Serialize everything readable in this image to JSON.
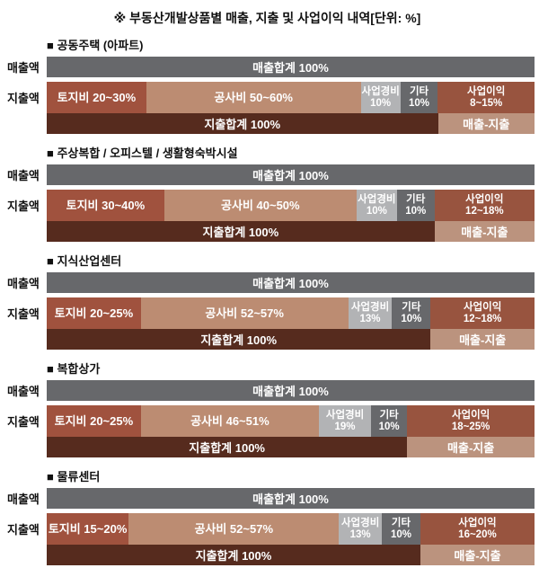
{
  "title": "※ 부동산개발상품별 매출, 지출 및 사업이익 내역[단위: %]",
  "labels": {
    "revenue_row": "매출액",
    "expense_row": "지출액"
  },
  "colors": {
    "revenue_total": "#67686b",
    "land": "#a0523e",
    "construction": "#bc8c72",
    "overhead": "#b2b3b5",
    "other": "#67686b",
    "profit": "#98543f",
    "expense_total": "#562b1e",
    "margin": "#bb937e",
    "text_on_bar": "#ffffff",
    "heading_text": "#111111"
  },
  "chart_data": {
    "type": "bar",
    "orientation": "horizontal-stacked",
    "unit": "%",
    "title": "※ 부동산개발상품별 매출, 지출 및 사업이익 내역[단위: %]",
    "legend": "none",
    "sections": [
      {
        "heading": "■ 공동주택 (아파트)",
        "revenue_total": "매출합계 100%",
        "expense_total": "지출합계 100%",
        "margin": "매출-지출",
        "segments": [
          {
            "name": "토지비",
            "line1": "토지비 20~30%",
            "line2": "",
            "value": "20~30%",
            "width_pct": 20.4,
            "color": "land"
          },
          {
            "name": "공사비",
            "line1": "공사비 50~60%",
            "line2": "",
            "value": "50~60%",
            "width_pct": 44.0,
            "color": "construction"
          },
          {
            "name": "사업경비",
            "line1": "사업경비",
            "line2": "10%",
            "value": "10%",
            "width_pct": 8.1,
            "color": "overhead"
          },
          {
            "name": "기타",
            "line1": "기타",
            "line2": "10%",
            "value": "10%",
            "width_pct": 7.7,
            "color": "other"
          },
          {
            "name": "사업이익",
            "line1": "사업이익",
            "line2": "8~15%",
            "value": "8~15%",
            "width_pct": 19.8,
            "color": "profit"
          }
        ]
      },
      {
        "heading": "■ 주상복합 / 오피스텔 / 생활형숙박시설",
        "revenue_total": "매출합계 100%",
        "expense_total": "지출합계 100%",
        "margin": "매출-지출",
        "segments": [
          {
            "name": "토지비",
            "line1": "토지비 30~40%",
            "line2": "",
            "value": "30~40%",
            "width_pct": 24.1,
            "color": "land"
          },
          {
            "name": "공사비",
            "line1": "공사비 40~50%",
            "line2": "",
            "value": "40~50%",
            "width_pct": 39.4,
            "color": "construction"
          },
          {
            "name": "사업경비",
            "line1": "사업경비",
            "line2": "10%",
            "value": "10%",
            "width_pct": 8.3,
            "color": "overhead"
          },
          {
            "name": "기타",
            "line1": "기타",
            "line2": "10%",
            "value": "10%",
            "width_pct": 7.7,
            "color": "other"
          },
          {
            "name": "사업이익",
            "line1": "사업이익",
            "line2": "12~18%",
            "value": "12~18%",
            "width_pct": 20.5,
            "color": "profit"
          }
        ]
      },
      {
        "heading": "■ 지식산업센터",
        "revenue_total": "매출합계 100%",
        "expense_total": "지출합계 100%",
        "margin": "매출-지출",
        "segments": [
          {
            "name": "토지비",
            "line1": "토지비 20~25%",
            "line2": "",
            "value": "20~25%",
            "width_pct": 19.3,
            "color": "land"
          },
          {
            "name": "공사비",
            "line1": "공사비 52~57%",
            "line2": "",
            "value": "52~57%",
            "width_pct": 42.5,
            "color": "construction"
          },
          {
            "name": "사업경비",
            "line1": "사업경비",
            "line2": "13%",
            "value": "13%",
            "width_pct": 9.0,
            "color": "overhead"
          },
          {
            "name": "기타",
            "line1": "기타",
            "line2": "10%",
            "value": "10%",
            "width_pct": 7.9,
            "color": "other"
          },
          {
            "name": "사업이익",
            "line1": "사업이익",
            "line2": "12~18%",
            "value": "12~18%",
            "width_pct": 21.3,
            "color": "profit"
          }
        ]
      },
      {
        "heading": "■ 복합상가",
        "revenue_total": "매출합계 100%",
        "expense_total": "지출합계 100%",
        "margin": "매출-지출",
        "segments": [
          {
            "name": "토지비",
            "line1": "토지비 20~25%",
            "line2": "",
            "value": "20~25%",
            "width_pct": 19.3,
            "color": "land"
          },
          {
            "name": "공사비",
            "line1": "공사비 46~51%",
            "line2": "",
            "value": "46~51%",
            "width_pct": 36.5,
            "color": "construction"
          },
          {
            "name": "사업경비",
            "line1": "사업경비",
            "line2": "19%",
            "value": "19%",
            "width_pct": 10.7,
            "color": "overhead"
          },
          {
            "name": "기타",
            "line1": "기타",
            "line2": "10%",
            "value": "10%",
            "width_pct": 7.4,
            "color": "other"
          },
          {
            "name": "사업이익",
            "line1": "사업이익",
            "line2": "18~25%",
            "value": "18~25%",
            "width_pct": 26.1,
            "color": "profit"
          }
        ]
      },
      {
        "heading": "■ 물류센터",
        "revenue_total": "매출합계 100%",
        "expense_total": "지출합계 100%",
        "margin": "매출-지출",
        "segments": [
          {
            "name": "토지비",
            "line1": "토지비 15~20%",
            "line2": "",
            "value": "15~20%",
            "width_pct": 16.8,
            "color": "land"
          },
          {
            "name": "공사비",
            "line1": "공사비 52~57%",
            "line2": "",
            "value": "52~57%",
            "width_pct": 43.1,
            "color": "construction"
          },
          {
            "name": "사업경비",
            "line1": "사업경비",
            "line2": "13%",
            "value": "13%",
            "width_pct": 8.8,
            "color": "overhead"
          },
          {
            "name": "기타",
            "line1": "기타",
            "line2": "10%",
            "value": "10%",
            "width_pct": 7.9,
            "color": "other"
          },
          {
            "name": "사업이익",
            "line1": "사업이익",
            "line2": "16~20%",
            "value": "16~20%",
            "width_pct": 23.4,
            "color": "profit"
          }
        ]
      }
    ]
  }
}
